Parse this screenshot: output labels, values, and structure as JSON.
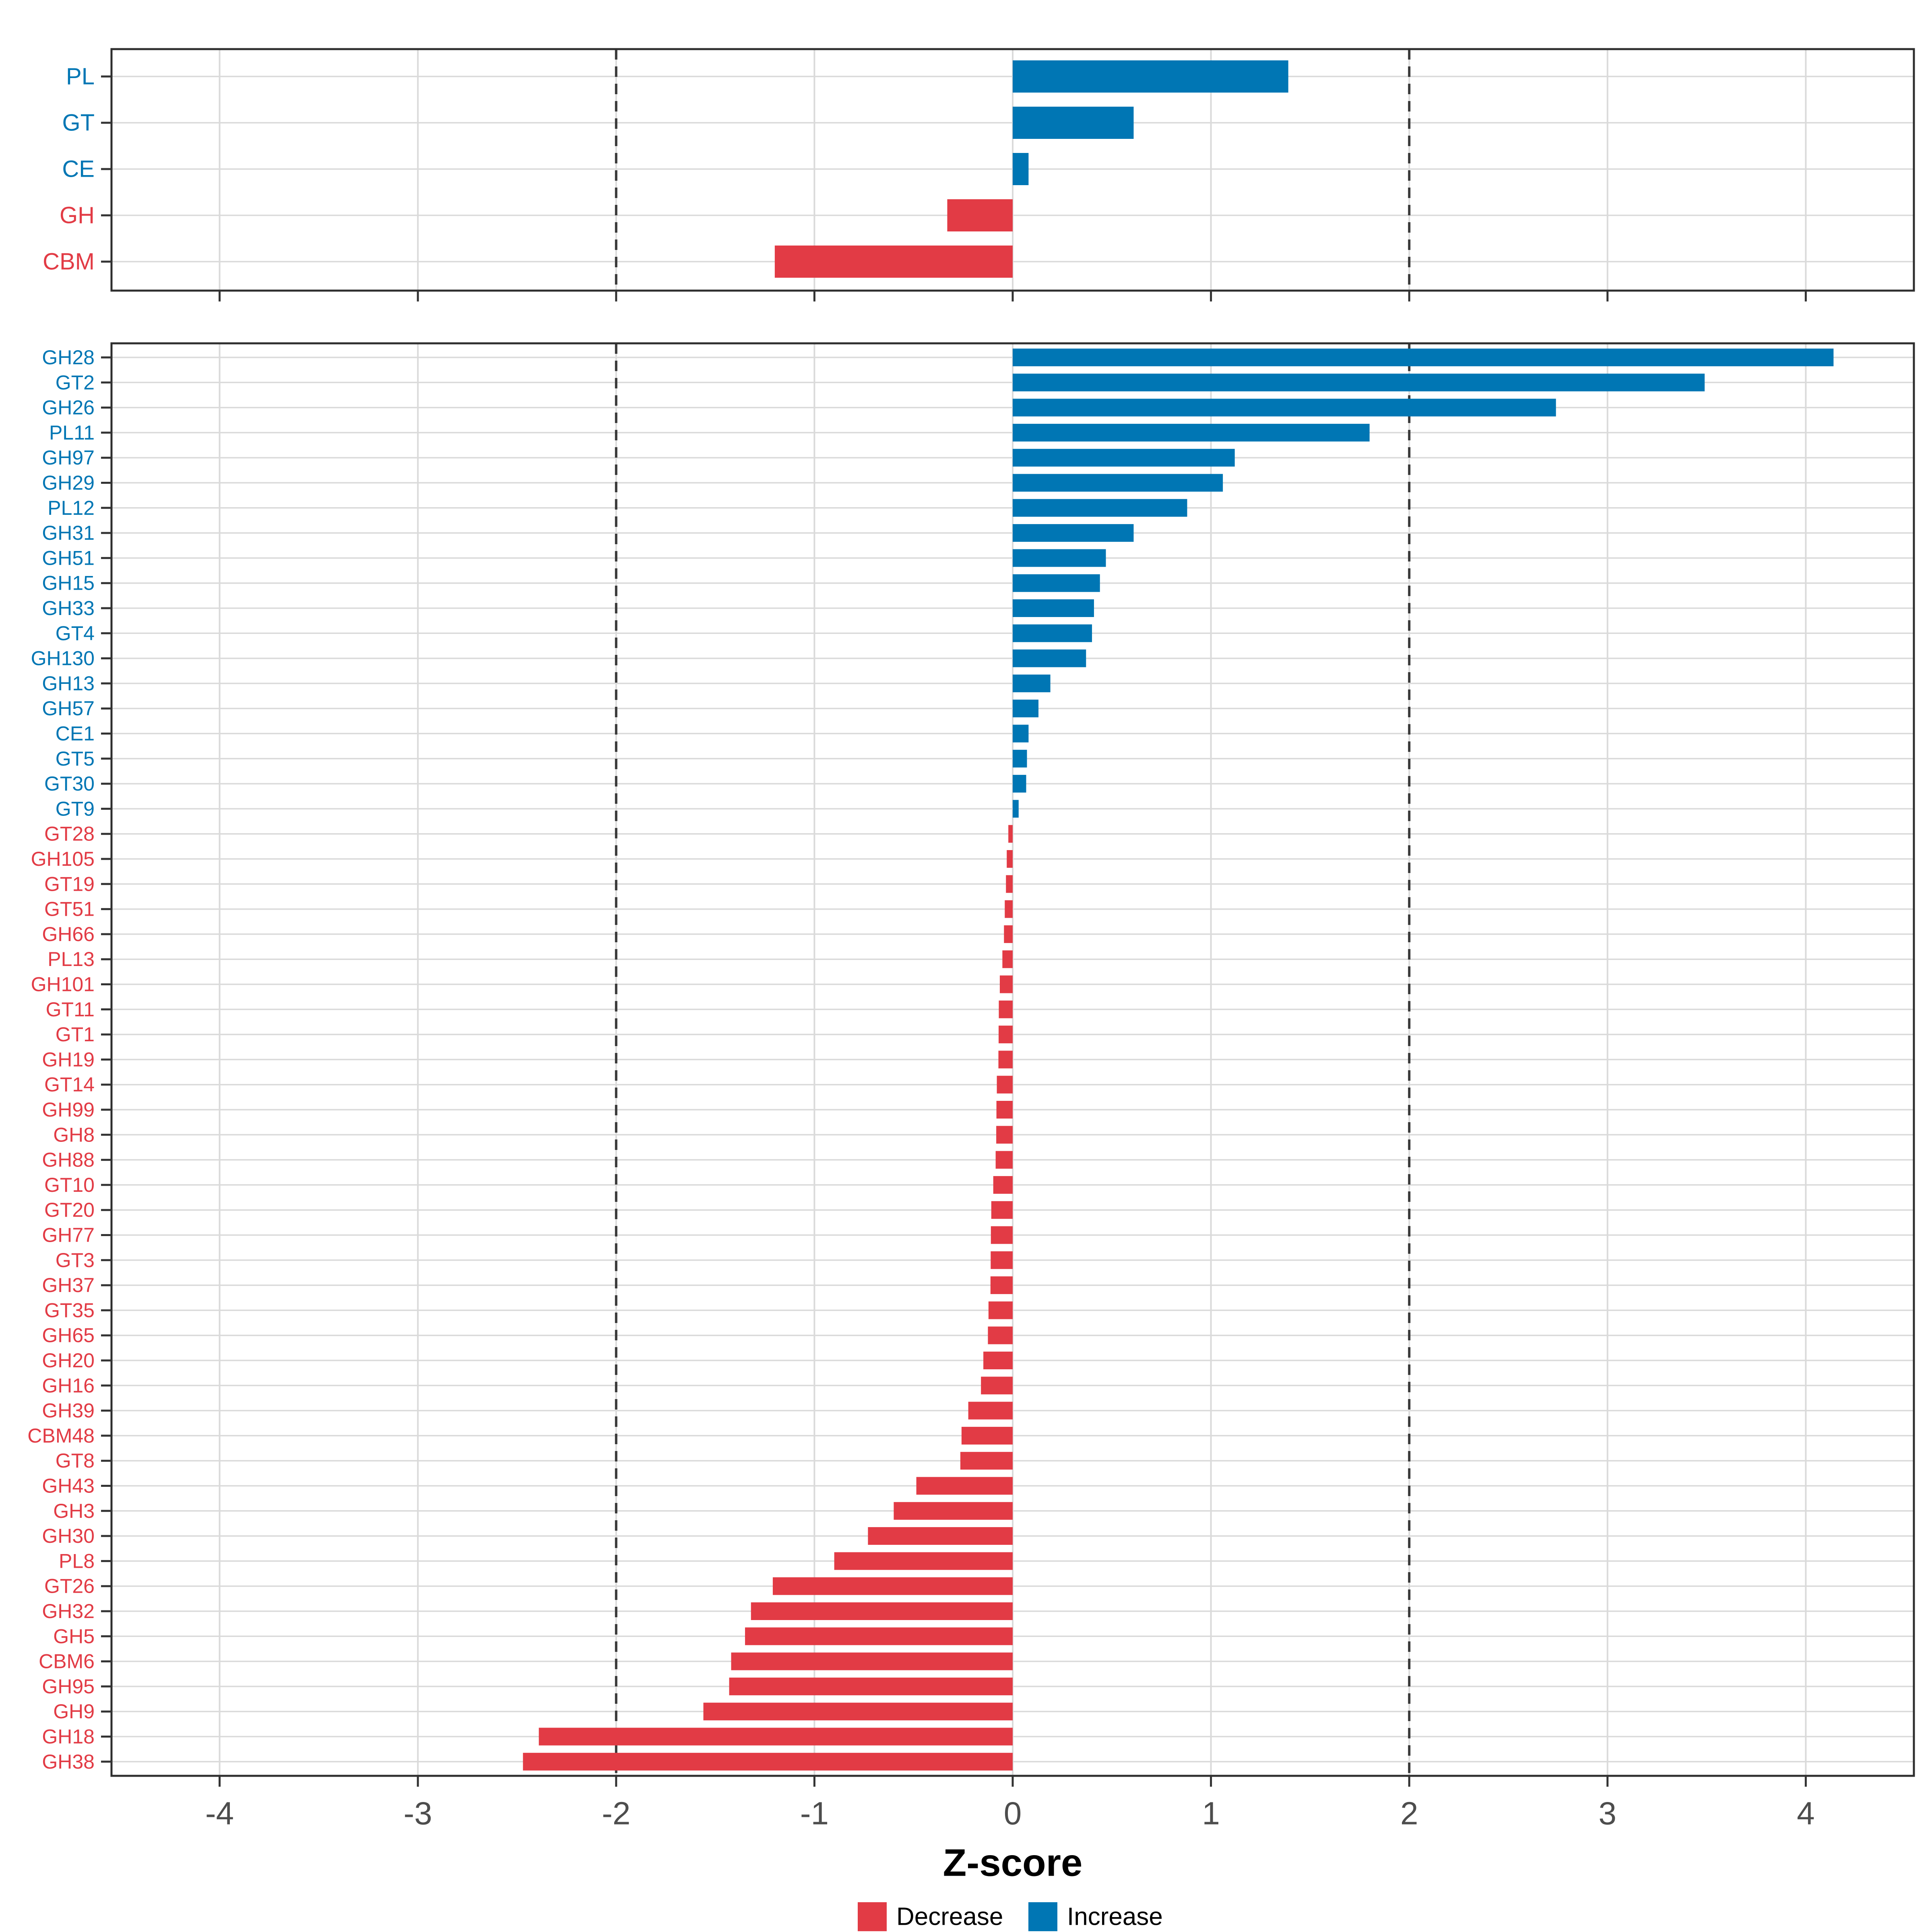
{
  "figure": {
    "xlabel": "Z-score",
    "x_ticks": [
      "-4",
      "-3",
      "-2",
      "-1",
      "0",
      "1",
      "2",
      "3",
      "4"
    ],
    "legend": {
      "decrease_label": "Decrease",
      "increase_label": "Increase"
    },
    "colors": {
      "increase": "#0076B4",
      "decrease": "#E23B45",
      "grid": "#DADADA",
      "panel_border": "#2E2E2E",
      "axis_tick": "#333333",
      "tick_text": "#4D4D4D",
      "dashed_line": "#3A3A3A",
      "title_text": "#000000"
    }
  },
  "chart_data": [
    {
      "type": "bar",
      "orientation": "horizontal",
      "panel": "enzyme-families-summary",
      "title": "",
      "xlabel": "Z-score",
      "xlim": [
        -4.55,
        4.55
      ],
      "grid": true,
      "dashed_vlines": [
        -2,
        2
      ],
      "categories": [
        "PL",
        "GT",
        "CE",
        "GH",
        "CBM"
      ],
      "values": [
        1.39,
        0.61,
        0.08,
        -0.33,
        -1.2
      ]
    },
    {
      "type": "bar",
      "orientation": "horizontal",
      "panel": "cazyme-subfamilies",
      "title": "",
      "xlabel": "Z-score",
      "xlim": [
        -4.55,
        4.55
      ],
      "grid": true,
      "dashed_vlines": [
        -2,
        2
      ],
      "categories": [
        "GH28",
        "GT2",
        "GH26",
        "PL11",
        "GH97",
        "GH29",
        "PL12",
        "GH31",
        "GH51",
        "GH15",
        "GH33",
        "GT4",
        "GH130",
        "GH13",
        "GH57",
        "CE1",
        "GT5",
        "GT30",
        "GT9",
        "GT28",
        "GH105",
        "GT19",
        "GT51",
        "GH66",
        "PL13",
        "GH101",
        "GT11",
        "GT1",
        "GH19",
        "GT14",
        "GH99",
        "GH8",
        "GH88",
        "GT10",
        "GT20",
        "GH77",
        "GT3",
        "GH37",
        "GT35",
        "GH65",
        "GH20",
        "GH16",
        "GH39",
        "CBM48",
        "GT8",
        "GH43",
        "GH3",
        "GH30",
        "PL8",
        "GT26",
        "GH32",
        "GH5",
        "CBM6",
        "GH95",
        "GH9",
        "GH18",
        "GH38"
      ],
      "values": [
        4.14,
        3.49,
        2.74,
        1.8,
        1.12,
        1.06,
        0.88,
        0.61,
        0.47,
        0.44,
        0.41,
        0.4,
        0.37,
        0.19,
        0.13,
        0.08,
        0.072,
        0.068,
        0.03,
        -0.022,
        -0.03,
        -0.034,
        -0.04,
        -0.044,
        -0.052,
        -0.065,
        -0.07,
        -0.071,
        -0.072,
        -0.08,
        -0.082,
        -0.083,
        -0.086,
        -0.098,
        -0.108,
        -0.11,
        -0.111,
        -0.112,
        -0.122,
        -0.125,
        -0.148,
        -0.16,
        -0.224,
        -0.258,
        -0.264,
        -0.486,
        -0.6,
        -0.73,
        -0.9,
        -1.21,
        -1.32,
        -1.35,
        -1.42,
        -1.43,
        -1.56,
        -2.39,
        -2.47
      ]
    }
  ]
}
